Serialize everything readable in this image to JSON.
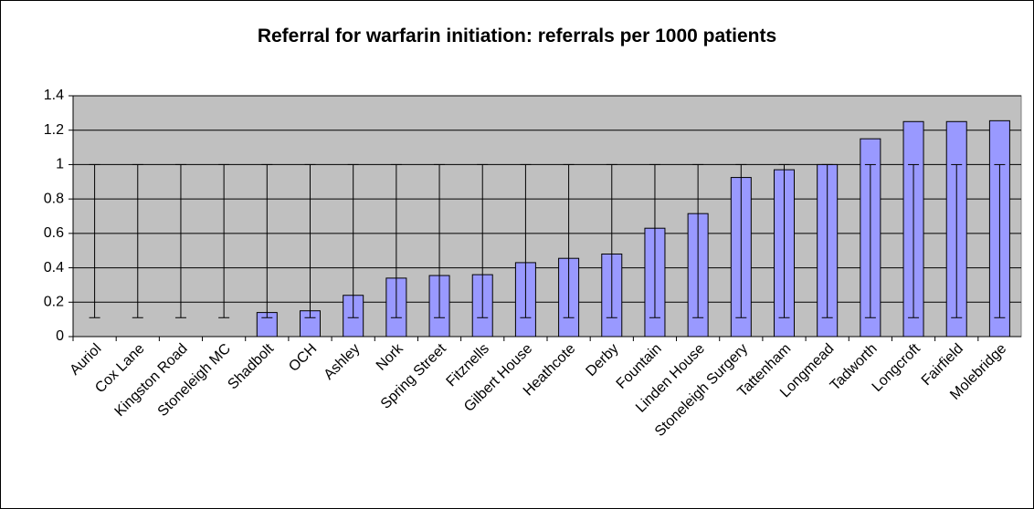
{
  "chart_data": {
    "type": "bar",
    "title": "Referral for warfarin initiation: referrals per 1000 patients",
    "categories": [
      "Auriol",
      "Cox Lane",
      "Kingston Road",
      "Stoneleigh MC",
      "Shadbolt",
      "OCH",
      "Ashley",
      "Nork",
      "Spring Street",
      "Fitznells",
      "Gilbert House",
      "Heathcote",
      "Derby",
      "Fountain",
      "Linden House",
      "Stoneleigh Surgery",
      "Tattenham",
      "Longmead",
      "Tadworth",
      "Longcroft",
      "Fairfield",
      "Molebridge"
    ],
    "values": [
      0,
      0,
      0,
      0,
      0.14,
      0.15,
      0.24,
      0.34,
      0.355,
      0.36,
      0.43,
      0.455,
      0.48,
      0.63,
      0.715,
      0.925,
      0.97,
      1.0,
      1.15,
      1.25,
      1.25,
      1.255
    ],
    "lower_limit": [
      0.11,
      0.11,
      0.11,
      0.11,
      0.11,
      0.11,
      0.11,
      0.11,
      0.11,
      0.11,
      0.11,
      0.11,
      0.11,
      0.11,
      0.11,
      0.11,
      0.11,
      0.11,
      0.11,
      0.11,
      0.11,
      0.11
    ],
    "upper_limit": [
      1,
      1,
      1,
      1,
      1,
      1,
      1,
      1,
      1,
      1,
      1,
      1,
      1,
      1,
      1,
      1,
      1,
      1,
      1,
      1,
      1,
      1
    ],
    "color": "#9999ff",
    "ylim": [
      0,
      1.4
    ],
    "yticks": [
      0,
      0.2,
      0.4,
      0.6,
      0.8,
      1,
      1.2,
      1.4
    ],
    "grid": true
  }
}
